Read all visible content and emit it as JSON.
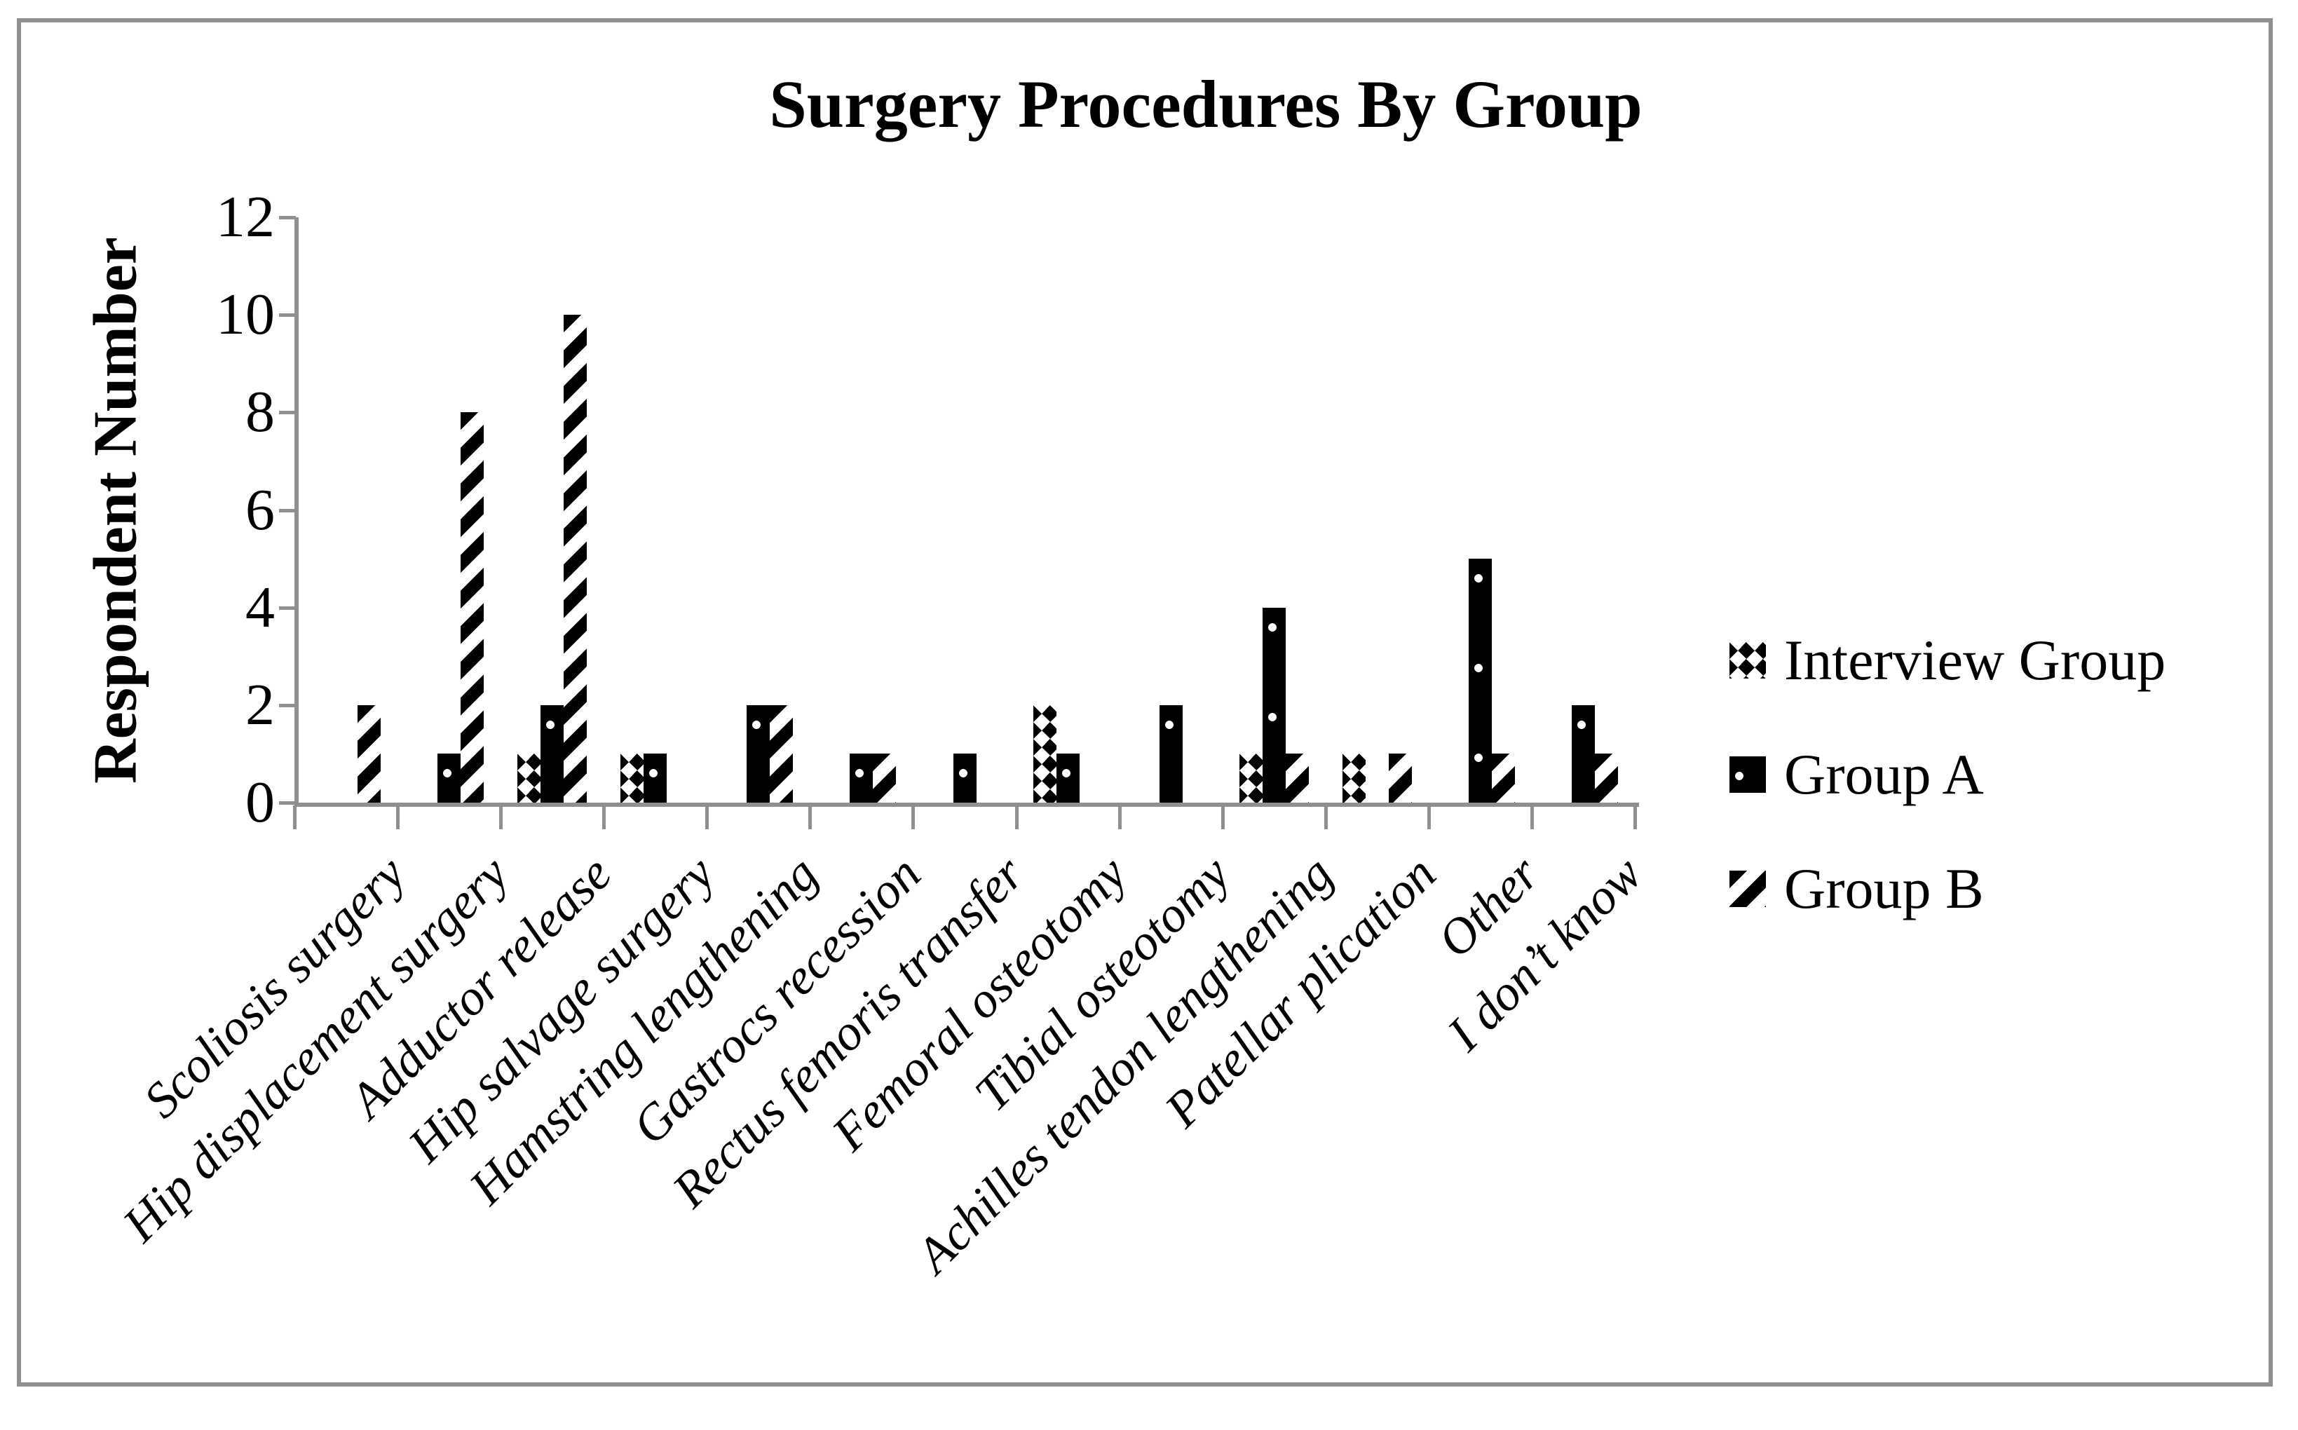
{
  "title": "Surgery Procedures By Group",
  "y_axis": {
    "label": "Respondent Number",
    "ticks": [
      0,
      2,
      4,
      6,
      8,
      10,
      12
    ],
    "max": 12
  },
  "legend": [
    {
      "label": "Interview Group",
      "pattern": "checker"
    },
    {
      "label": "Group A",
      "pattern": "solid-dots"
    },
    {
      "label": "Group B",
      "pattern": "diagonal-stripes"
    }
  ],
  "colors": {
    "bar_fill": "#000000",
    "axis_gray": "#8f8f8f",
    "background": "#ffffff"
  },
  "chart_data": {
    "type": "bar",
    "title": "Surgery Procedures By Group",
    "xlabel": "",
    "ylabel": "Respondent Number",
    "ylim": [
      0,
      12
    ],
    "grid": false,
    "legend_position": "right",
    "categories": [
      "Scoliosis surgery",
      "Hip displacement surgery",
      "Adductor release",
      "Hip salvage surgery",
      "Hamstring lengthening",
      "Gastrocs recession",
      "Rectus femoris transfer",
      "Femoral osteotomy",
      "Tibial osteotomy",
      "Achilles tendon lengthening",
      "Patellar plication",
      "Other",
      "I don’t know"
    ],
    "series": [
      {
        "name": "Interview Group",
        "values": [
          0,
          0,
          1,
          1,
          0,
          0,
          0,
          2,
          0,
          1,
          1,
          0,
          0
        ]
      },
      {
        "name": "Group A",
        "values": [
          0,
          1,
          2,
          1,
          2,
          1,
          1,
          1,
          2,
          4,
          0,
          5,
          2
        ]
      },
      {
        "name": "Group B",
        "values": [
          2,
          8,
          10,
          0,
          2,
          1,
          0,
          0,
          0,
          1,
          1,
          1,
          1
        ]
      }
    ]
  }
}
